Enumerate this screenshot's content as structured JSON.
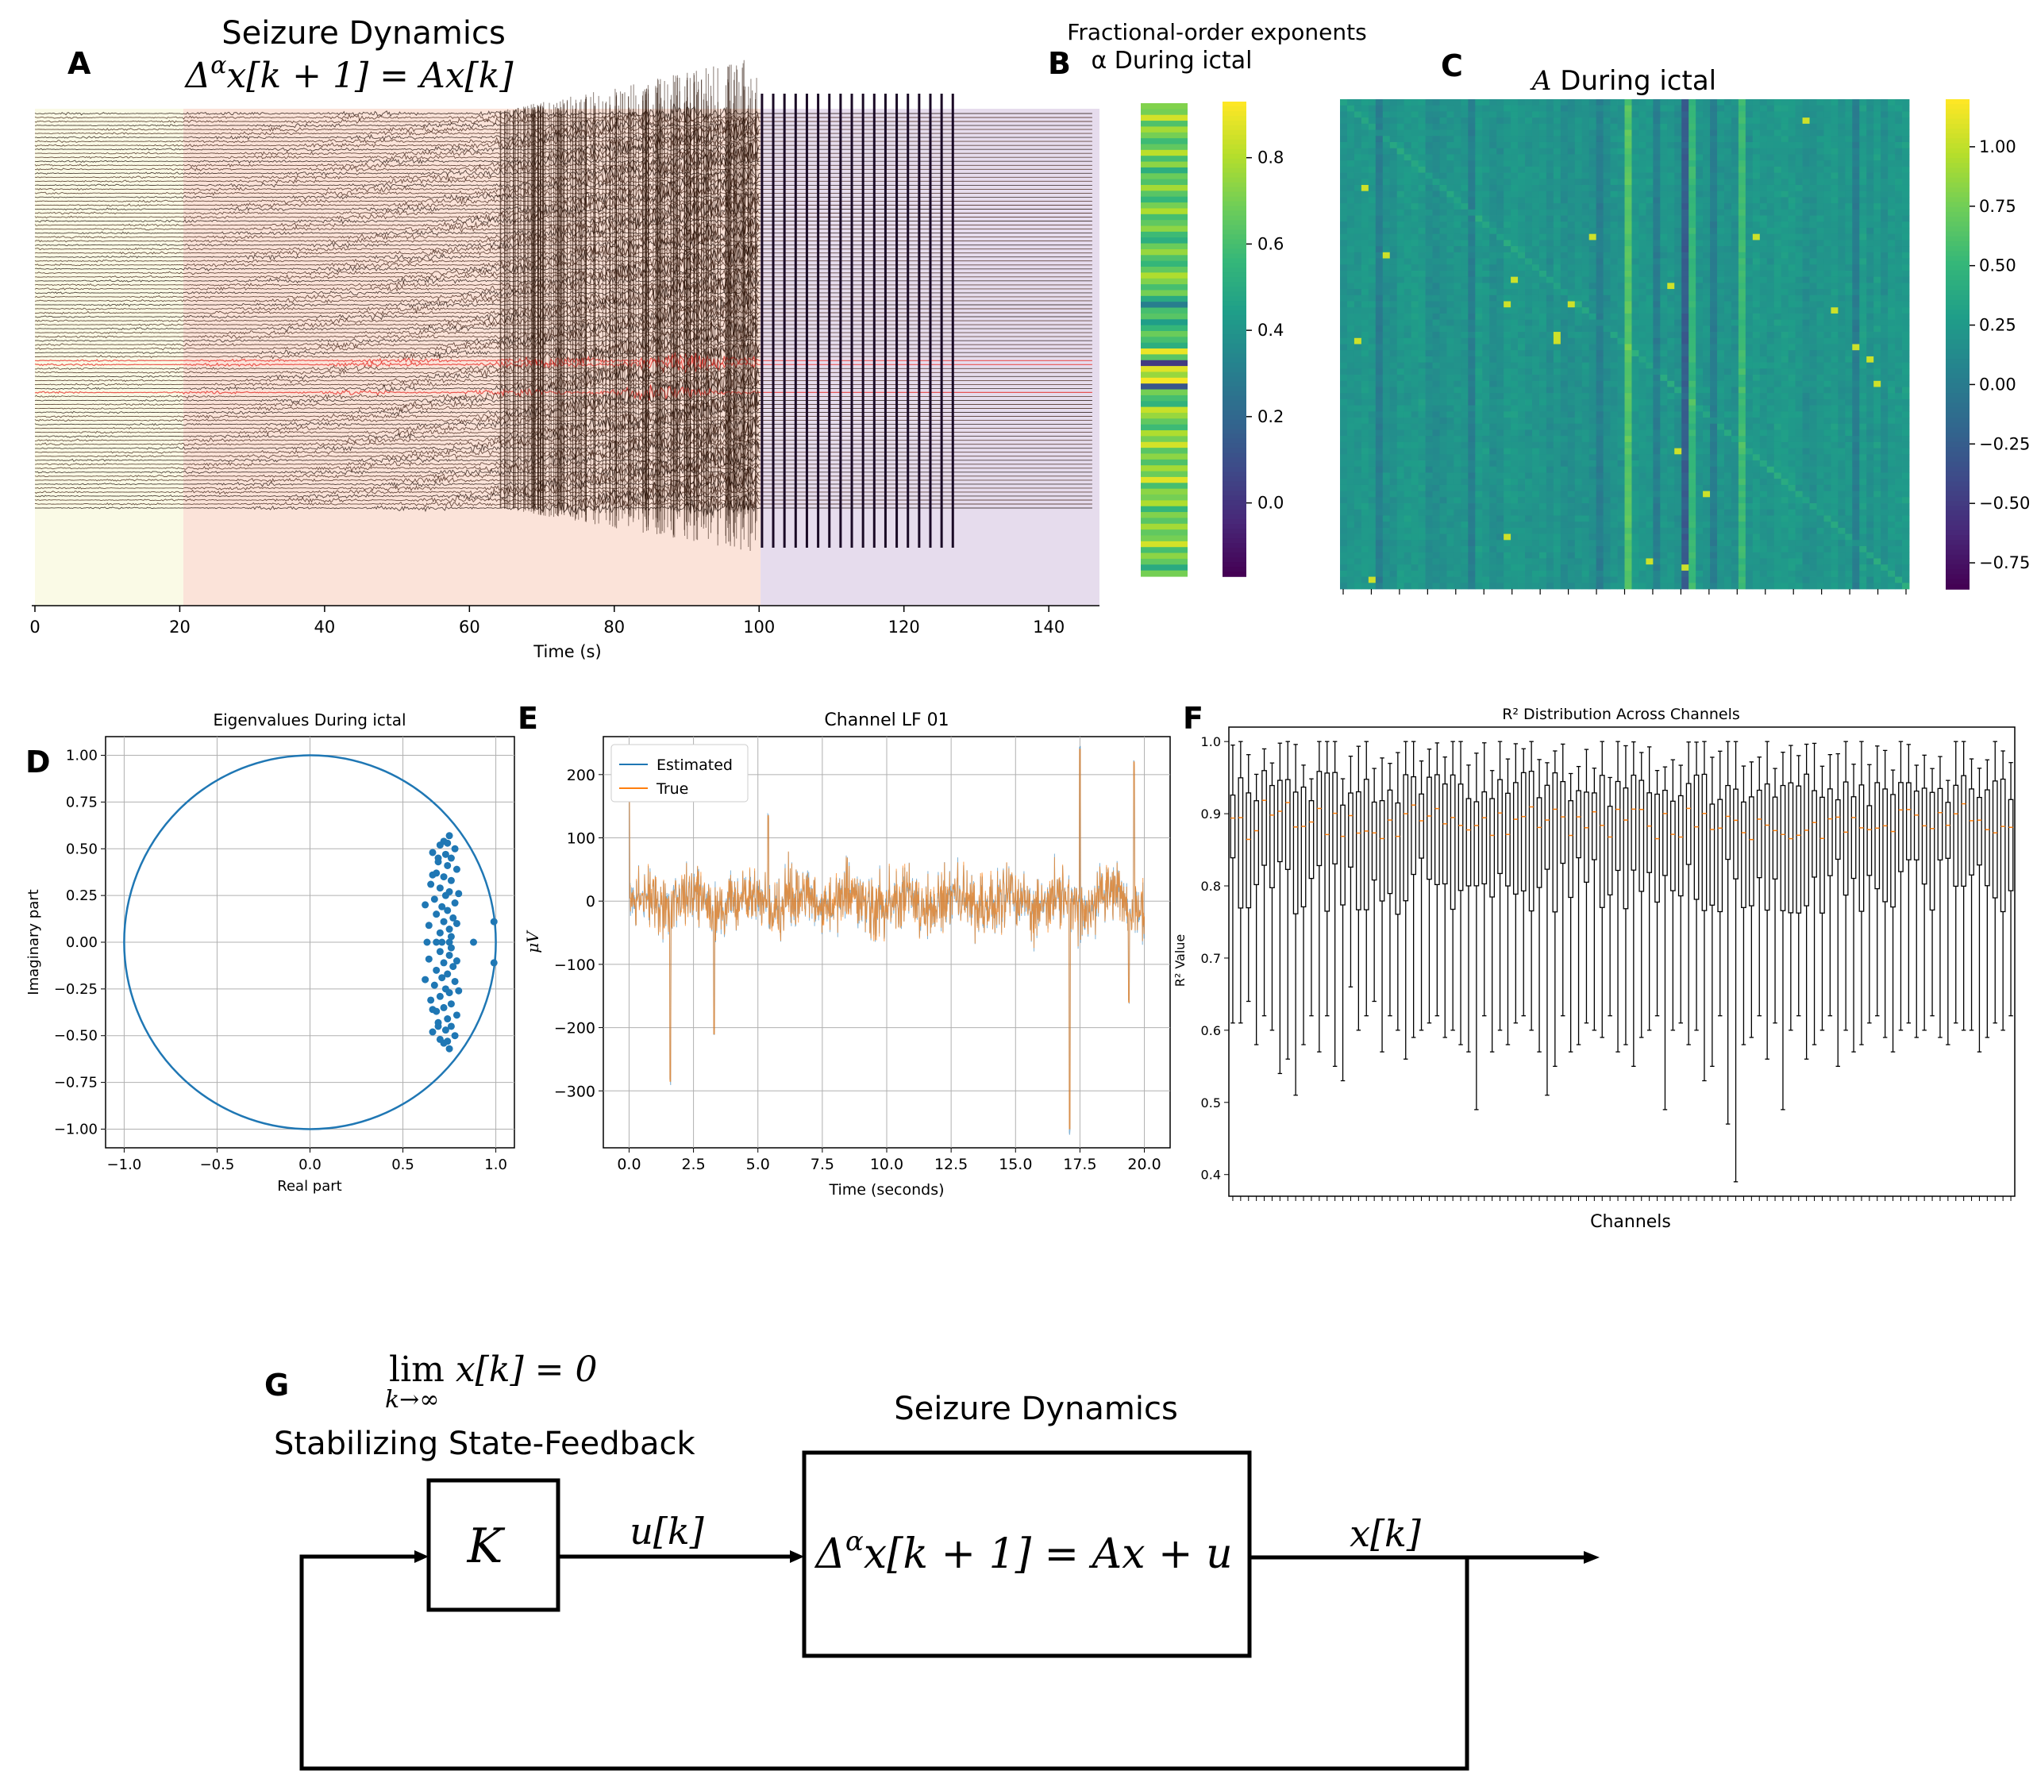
{
  "panel_labels": {
    "A": "A",
    "B": "B",
    "C": "C",
    "D": "D",
    "E": "E",
    "F": "F",
    "G": "G"
  },
  "chart_data": [
    {
      "id": "A",
      "type": "line",
      "title": "Seizure Dynamics",
      "equation": "Δ^α x[k + 1] = Ax[k]",
      "xlabel": "Time (s)",
      "ylabel": "",
      "xlim": [
        0,
        147
      ],
      "xticks": [
        "0",
        "20",
        "40",
        "60",
        "80",
        "100",
        "120",
        "140"
      ],
      "shaded_periods": [
        {
          "start": 0,
          "end": 20.5,
          "color": "#fafae6"
        },
        {
          "start": 20.5,
          "end": 100.2,
          "color": "#fbe3d9"
        },
        {
          "start": 100.2,
          "end": 147,
          "color": "#e6dced"
        }
      ],
      "channels": 100,
      "highlighted_channels_color": "#ff0000",
      "trace_color": "#000000"
    },
    {
      "id": "B",
      "type": "heatmap",
      "title": "Fractional-order exponents",
      "subtitle": "α During ictal",
      "colormap": "viridis",
      "colorbar_ticks": [
        "0.0",
        "0.2",
        "0.4",
        "0.6",
        "0.8"
      ],
      "colorbar_range": [
        -0.17,
        0.93
      ],
      "values": [
        0.72,
        0.7,
        0.86,
        0.62,
        0.78,
        0.7,
        0.58,
        0.66,
        0.82,
        0.6,
        0.74,
        0.52,
        0.68,
        0.62,
        0.78,
        0.64,
        0.56,
        0.7,
        0.8,
        0.6,
        0.66,
        0.74,
        0.58,
        0.52,
        0.68,
        0.76,
        0.62,
        0.56,
        0.66,
        0.8,
        0.72,
        0.6,
        0.7,
        0.5,
        0.3,
        0.6,
        0.64,
        0.44,
        0.56,
        0.68,
        0.6,
        0.52,
        0.9,
        0.64,
        0.02,
        0.88,
        0.76,
        0.92,
        0.12,
        0.7,
        0.6,
        0.54,
        0.84,
        0.76,
        0.66,
        0.58,
        0.8,
        0.7,
        0.86,
        0.64,
        0.74,
        0.62,
        0.78,
        0.68,
        0.88,
        0.6,
        0.74,
        0.7,
        0.8,
        0.56,
        0.72,
        0.64,
        0.78,
        0.66,
        0.7,
        0.86,
        0.6,
        0.74,
        0.66,
        0.5,
        0.7
      ]
    },
    {
      "id": "C",
      "type": "heatmap",
      "title": "A During ictal",
      "colormap": "viridis",
      "colorbar_ticks": [
        "1.00",
        "0.75",
        "0.50",
        "0.25",
        "0.00",
        "−0.25",
        "−0.50",
        "−0.75"
      ],
      "colorbar_range": [
        -0.86,
        1.2
      ],
      "size": 80
    },
    {
      "id": "D",
      "type": "scatter",
      "title": "Eigenvalues During ictal",
      "xlabel": "Real part",
      "ylabel": "Imaginary part",
      "xlim": [
        -1.1,
        1.1
      ],
      "ylim": [
        -1.1,
        1.1
      ],
      "xticks": [
        "−1.0",
        "−0.5",
        "0.0",
        "0.5",
        "1.0"
      ],
      "yticks": [
        "1.00",
        "0.75",
        "0.50",
        "0.25",
        "0.00",
        "−0.25",
        "−0.50",
        "−0.75",
        "−1.00"
      ],
      "unit_circle": true,
      "grid": true,
      "points": [
        [
          0.75,
          0.57
        ],
        [
          0.75,
          -0.57
        ],
        [
          0.72,
          0.54
        ],
        [
          0.72,
          -0.54
        ],
        [
          0.7,
          0.52
        ],
        [
          0.7,
          -0.52
        ],
        [
          0.78,
          0.5
        ],
        [
          0.78,
          -0.5
        ],
        [
          0.66,
          0.48
        ],
        [
          0.66,
          -0.48
        ],
        [
          0.73,
          0.47
        ],
        [
          0.73,
          -0.47
        ],
        [
          0.76,
          0.45
        ],
        [
          0.76,
          -0.45
        ],
        [
          0.69,
          0.43
        ],
        [
          0.69,
          -0.43
        ],
        [
          0.74,
          0.41
        ],
        [
          0.74,
          -0.41
        ],
        [
          0.79,
          0.39
        ],
        [
          0.79,
          -0.39
        ],
        [
          0.68,
          0.37
        ],
        [
          0.68,
          -0.37
        ],
        [
          0.72,
          0.35
        ],
        [
          0.72,
          -0.35
        ],
        [
          0.76,
          0.33
        ],
        [
          0.76,
          -0.33
        ],
        [
          0.65,
          0.31
        ],
        [
          0.65,
          -0.31
        ],
        [
          0.7,
          0.29
        ],
        [
          0.7,
          -0.29
        ],
        [
          0.75,
          0.27
        ],
        [
          0.75,
          -0.27
        ],
        [
          0.73,
          0.25
        ],
        [
          0.73,
          -0.25
        ],
        [
          0.67,
          0.23
        ],
        [
          0.67,
          -0.23
        ],
        [
          0.78,
          0.21
        ],
        [
          0.78,
          -0.21
        ],
        [
          0.71,
          0.19
        ],
        [
          0.71,
          -0.19
        ],
        [
          0.74,
          0.17
        ],
        [
          0.74,
          -0.17
        ],
        [
          0.68,
          0.15
        ],
        [
          0.68,
          -0.15
        ],
        [
          0.77,
          0.13
        ],
        [
          0.77,
          -0.13
        ],
        [
          0.72,
          0.11
        ],
        [
          0.72,
          -0.11
        ],
        [
          0.64,
          0.09
        ],
        [
          0.64,
          -0.09
        ],
        [
          0.75,
          0.07
        ],
        [
          0.75,
          -0.07
        ],
        [
          0.7,
          0.05
        ],
        [
          0.7,
          -0.05
        ],
        [
          0.76,
          0.03
        ],
        [
          0.76,
          -0.03
        ],
        [
          0.66,
          0.36
        ],
        [
          0.66,
          -0.36
        ],
        [
          0.8,
          0.26
        ],
        [
          0.8,
          -0.26
        ],
        [
          0.62,
          0.2
        ],
        [
          0.62,
          -0.2
        ],
        [
          0.79,
          0.1
        ],
        [
          0.79,
          -0.1
        ],
        [
          0.69,
          0.45
        ],
        [
          0.69,
          -0.45
        ],
        [
          0.74,
          0.53
        ],
        [
          0.74,
          -0.53
        ],
        [
          0.99,
          0.11
        ],
        [
          0.99,
          -0.11
        ],
        [
          0.88,
          0.0
        ],
        [
          0.71,
          0.0
        ],
        [
          0.63,
          0.0
        ],
        [
          0.75,
          0.0
        ],
        [
          0.68,
          0.0
        ]
      ]
    },
    {
      "id": "E",
      "type": "line",
      "title": "Channel LF 01",
      "xlabel": "Time (seconds)",
      "ylabel": "μV",
      "xlim": [
        -1.0,
        21.0
      ],
      "ylim": [
        -390,
        260
      ],
      "xticks": [
        "0.0",
        "2.5",
        "5.0",
        "7.5",
        "10.0",
        "12.5",
        "15.0",
        "17.5",
        "20.0"
      ],
      "yticks": [
        "200",
        "100",
        "0",
        "−100",
        "−200",
        "−300"
      ],
      "grid": true,
      "series": [
        {
          "name": "Estimated",
          "color": "#1f77b4"
        },
        {
          "name": "True",
          "color": "#ff7f0e"
        }
      ],
      "spikes": [
        [
          0.0,
          190
        ],
        [
          1.6,
          -285
        ],
        [
          3.3,
          -210
        ],
        [
          5.4,
          135
        ],
        [
          17.1,
          -360
        ],
        [
          17.5,
          240
        ],
        [
          19.6,
          220
        ],
        [
          19.4,
          -160
        ]
      ]
    },
    {
      "id": "F",
      "type": "box",
      "title": "R² Distribution Across Channels",
      "xlabel": "Channels",
      "ylabel": "R² Value",
      "ylim": [
        0.37,
        1.02
      ],
      "yticks": [
        "1.0",
        "0.9",
        "0.8",
        "0.7",
        "0.6",
        "0.5",
        "0.4"
      ],
      "n_channels": 100,
      "median_color": "#ff7f0e",
      "whisker_low_min": [
        0.61,
        0.61,
        0.64,
        0.58,
        0.62,
        0.6,
        0.54,
        0.56,
        0.51,
        0.58,
        0.62,
        0.57,
        0.62,
        0.55,
        0.53,
        0.66,
        0.6,
        0.62,
        0.64,
        0.57,
        0.62,
        0.6,
        0.56,
        0.59,
        0.6,
        0.61,
        0.62,
        0.59,
        0.6,
        0.58,
        0.57,
        0.49,
        0.62,
        0.57,
        0.6,
        0.58,
        0.61,
        0.62,
        0.6,
        0.57,
        0.51,
        0.55,
        0.62,
        0.57,
        0.58,
        0.61,
        0.6,
        0.59,
        0.62,
        0.57,
        0.58,
        0.55,
        0.59,
        0.6,
        0.62,
        0.49,
        0.6,
        0.61,
        0.58,
        0.6,
        0.53,
        0.55,
        0.62,
        0.47,
        0.39,
        0.58,
        0.59,
        0.62,
        0.56,
        0.61,
        0.49,
        0.6,
        0.62,
        0.56,
        0.58,
        0.6,
        0.62,
        0.55,
        0.6,
        0.57,
        0.58,
        0.61,
        0.62,
        0.59,
        0.57,
        0.6,
        0.61,
        0.59,
        0.6,
        0.62,
        0.59,
        0.58,
        0.61,
        0.6,
        0.6,
        0.57,
        0.59,
        0.61,
        0.6,
        0.62
      ]
    }
  ],
  "diagram": {
    "label": "G",
    "limit_text": "lim x[k] = 0",
    "limit_sub": "k→∞",
    "feedback_title": "Stabilizing State-Feedback",
    "controller": "K",
    "input_signal": "u[k]",
    "plant_title": "Seizure Dynamics",
    "plant_equation": "Δ^α x[k + 1] = Ax + u",
    "output_signal": "x[k]"
  }
}
